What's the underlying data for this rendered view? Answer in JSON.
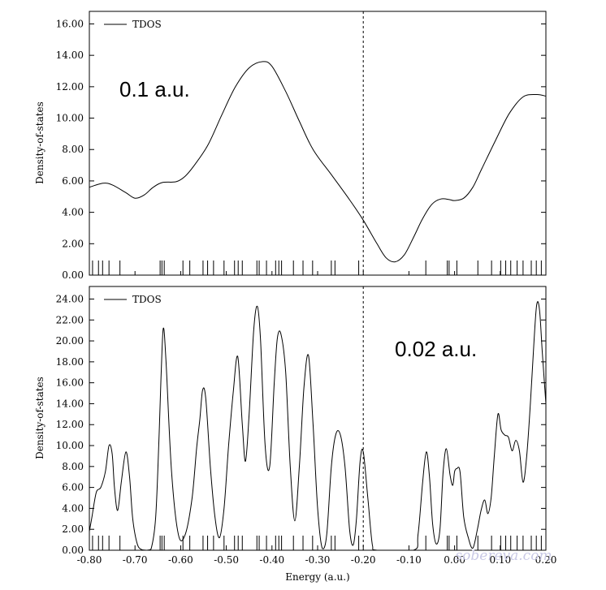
{
  "chart_data": [
    {
      "type": "line",
      "panel": "top",
      "ylabel": "Density-of-states",
      "xlabel": "",
      "xlim": [
        -0.8,
        0.2
      ],
      "ylim": [
        0,
        16.8
      ],
      "yticks": [
        0,
        2,
        4,
        6,
        8,
        10,
        12,
        14,
        16
      ],
      "ytick_labels": [
        "0.00",
        "2.00",
        "4.00",
        "6.00",
        "8.00",
        "10.00",
        "12.00",
        "14.00",
        "16.00"
      ],
      "legend": "top-left",
      "annotation": "0.1 a.u.",
      "vline_x": -0.2,
      "series": [
        {
          "name": "TDOS",
          "x": [
            -0.8,
            -0.77,
            -0.75,
            -0.72,
            -0.7,
            -0.68,
            -0.66,
            -0.64,
            -0.61,
            -0.59,
            -0.57,
            -0.54,
            -0.51,
            -0.48,
            -0.45,
            -0.42,
            -0.4,
            -0.37,
            -0.34,
            -0.31,
            -0.27,
            -0.23,
            -0.2,
            -0.17,
            -0.15,
            -0.13,
            -0.11,
            -0.09,
            -0.07,
            -0.05,
            -0.03,
            -0.01,
            0.0,
            0.02,
            0.04,
            0.06,
            0.09,
            0.12,
            0.15,
            0.18,
            0.2
          ],
          "values": [
            5.6,
            5.85,
            5.75,
            5.25,
            4.9,
            5.1,
            5.6,
            5.9,
            5.95,
            6.3,
            7.0,
            8.3,
            10.2,
            12.0,
            13.2,
            13.6,
            13.3,
            11.7,
            9.8,
            8.0,
            6.4,
            4.8,
            3.5,
            2.0,
            1.1,
            0.85,
            1.3,
            2.4,
            3.6,
            4.5,
            4.85,
            4.8,
            4.75,
            4.9,
            5.6,
            6.8,
            8.6,
            10.3,
            11.35,
            11.5,
            11.4
          ]
        }
      ],
      "stick_energies": [
        -0.793,
        -0.78,
        -0.771,
        -0.757,
        -0.733,
        -0.645,
        -0.641,
        -0.636,
        -0.595,
        -0.58,
        -0.551,
        -0.541,
        -0.528,
        -0.505,
        -0.482,
        -0.474,
        -0.465,
        -0.433,
        -0.428,
        -0.412,
        -0.392,
        -0.385,
        -0.379,
        -0.353,
        -0.332,
        -0.311,
        -0.27,
        -0.262,
        -0.21,
        -0.063,
        -0.016,
        -0.012,
        0.005,
        0.051,
        0.081,
        0.101,
        0.112,
        0.123,
        0.137,
        0.15,
        0.168,
        0.179,
        0.19
      ]
    },
    {
      "type": "line",
      "panel": "bottom",
      "ylabel": "Density-of-states",
      "xlabel": "Energy (a.u.)",
      "xlim": [
        -0.8,
        0.2
      ],
      "ylim": [
        0,
        25.2
      ],
      "yticks": [
        0,
        2,
        4,
        6,
        8,
        10,
        12,
        14,
        16,
        18,
        20,
        22,
        24
      ],
      "ytick_labels": [
        "0.00",
        "2.00",
        "4.00",
        "6.00",
        "8.00",
        "10.00",
        "12.00",
        "14.00",
        "16.00",
        "18.00",
        "20.00",
        "22.00",
        "24.00"
      ],
      "xticks": [
        -0.8,
        -0.7,
        -0.6,
        -0.5,
        -0.4,
        -0.3,
        -0.2,
        -0.1,
        0.0,
        0.1,
        0.2
      ],
      "xtick_labels": [
        "-0.80",
        "-0.70",
        "-0.60",
        "-0.50",
        "-0.40",
        "-0.30",
        "-0.20",
        "-0.10",
        "0.00",
        "0.10",
        "0.20"
      ],
      "legend": "top-left",
      "annotation": "0.02 a.u.",
      "vline_x": -0.2,
      "series": [
        {
          "name": "TDOS",
          "x": [
            -0.8,
            -0.795,
            -0.785,
            -0.775,
            -0.765,
            -0.757,
            -0.75,
            -0.745,
            -0.738,
            -0.73,
            -0.72,
            -0.712,
            -0.705,
            -0.695,
            -0.685,
            -0.675,
            -0.665,
            -0.655,
            -0.648,
            -0.643,
            -0.638,
            -0.632,
            -0.62,
            -0.605,
            -0.59,
            -0.575,
            -0.565,
            -0.558,
            -0.552,
            -0.545,
            -0.535,
            -0.525,
            -0.515,
            -0.505,
            -0.495,
            -0.485,
            -0.475,
            -0.465,
            -0.458,
            -0.45,
            -0.44,
            -0.432,
            -0.425,
            -0.415,
            -0.405,
            -0.395,
            -0.388,
            -0.38,
            -0.37,
            -0.36,
            -0.35,
            -0.34,
            -0.33,
            -0.32,
            -0.31,
            -0.3,
            -0.29,
            -0.28,
            -0.27,
            -0.26,
            -0.25,
            -0.24,
            -0.23,
            -0.222,
            -0.215,
            -0.207,
            -0.2,
            -0.19,
            -0.18,
            -0.17,
            -0.09,
            -0.08,
            -0.07,
            -0.062,
            -0.055,
            -0.048,
            -0.04,
            -0.032,
            -0.025,
            -0.018,
            -0.01,
            -0.004,
            0.0,
            0.005,
            0.012,
            0.02,
            0.03,
            0.04,
            0.05,
            0.058,
            0.066,
            0.073,
            0.08,
            0.087,
            0.095,
            0.102,
            0.11,
            0.118,
            0.126,
            0.134,
            0.142,
            0.15,
            0.158,
            0.166,
            0.174,
            0.18,
            0.186,
            0.192,
            0.2
          ],
          "values": [
            1.8,
            3.0,
            5.5,
            6.0,
            7.5,
            10.0,
            9.2,
            6.0,
            3.8,
            6.5,
            9.4,
            7.0,
            3.0,
            0.6,
            0.05,
            0.0,
            0.1,
            3.0,
            10.0,
            16.5,
            21.2,
            18.0,
            7.5,
            1.5,
            1.5,
            5.0,
            9.8,
            12.5,
            15.3,
            14.5,
            8.0,
            3.2,
            1.2,
            4.0,
            10.0,
            15.0,
            18.5,
            12.0,
            8.5,
            13.0,
            21.0,
            23.3,
            20.0,
            10.0,
            8.0,
            16.0,
            20.3,
            20.6,
            17.0,
            8.0,
            2.8,
            8.0,
            15.5,
            18.6,
            12.0,
            4.0,
            0.2,
            1.5,
            8.0,
            11.1,
            11.0,
            8.0,
            2.0,
            0.5,
            3.0,
            8.5,
            9.4,
            5.0,
            0.5,
            0.0,
            0.0,
            1.5,
            6.5,
            9.4,
            7.0,
            2.5,
            0.6,
            2.0,
            7.5,
            9.7,
            7.2,
            6.2,
            7.5,
            7.8,
            7.5,
            3.2,
            1.2,
            0.2,
            2.0,
            3.8,
            4.8,
            3.5,
            5.0,
            9.0,
            13.0,
            11.5,
            11.0,
            10.8,
            9.5,
            10.5,
            9.5,
            6.5,
            9.0,
            14.0,
            20.0,
            23.5,
            23.0,
            19.0,
            14.0
          ]
        }
      ],
      "stick_energies": [
        -0.793,
        -0.78,
        -0.771,
        -0.757,
        -0.733,
        -0.645,
        -0.641,
        -0.636,
        -0.595,
        -0.58,
        -0.551,
        -0.541,
        -0.528,
        -0.505,
        -0.482,
        -0.474,
        -0.465,
        -0.433,
        -0.428,
        -0.412,
        -0.392,
        -0.385,
        -0.379,
        -0.353,
        -0.332,
        -0.311,
        -0.27,
        -0.262,
        -0.21,
        -0.063,
        -0.016,
        -0.012,
        0.005,
        0.051,
        0.081,
        0.101,
        0.112,
        0.123,
        0.137,
        0.15,
        0.168,
        0.179,
        0.19
      ]
    }
  ],
  "watermark": "sobereva.com"
}
